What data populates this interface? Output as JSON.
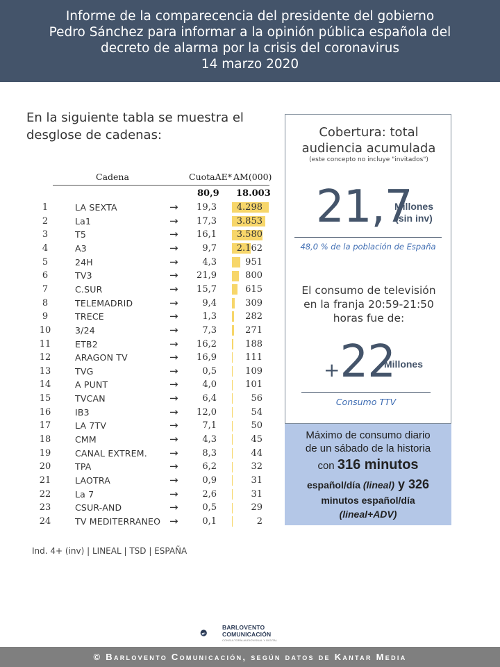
{
  "header": {
    "lines": [
      "Informe de la comparecencia del presidente del gobierno",
      "Pedro Sánchez para informar a la opinión pública española del",
      "decreto de alarma por la crisis del coronavirus",
      "14 marzo 2020"
    ]
  },
  "intro": {
    "line1": "En la siguiente tabla se muestra el",
    "line2": "desglose de cadenas:"
  },
  "table": {
    "col_cadena": "Cadena",
    "col_cuota": "CuotaAE*",
    "col_am": "AM(000)",
    "total_cuota": "80,9",
    "total_am": "18.003",
    "rows": [
      {
        "rank": "1",
        "name": "LA SEXTA",
        "arrow": "→",
        "cuota": "19,3",
        "am": "4.298",
        "am_value": 4298
      },
      {
        "rank": "2",
        "name": "La1",
        "arrow": "→",
        "cuota": "17,3",
        "am": "3.853",
        "am_value": 3853
      },
      {
        "rank": "3",
        "name": "T5",
        "arrow": "→",
        "cuota": "16,1",
        "am": "3.580",
        "am_value": 3580
      },
      {
        "rank": "4",
        "name": "A3",
        "arrow": "→",
        "cuota": "9,7",
        "am": "2.162",
        "am_value": 2162
      },
      {
        "rank": "5",
        "name": "24H",
        "arrow": "→",
        "cuota": "4,3",
        "am": "951",
        "am_value": 951
      },
      {
        "rank": "6",
        "name": "TV3",
        "arrow": "→",
        "cuota": "21,9",
        "am": "800",
        "am_value": 800
      },
      {
        "rank": "7",
        "name": "C.SUR",
        "arrow": "→",
        "cuota": "15,7",
        "am": "615",
        "am_value": 615
      },
      {
        "rank": "8",
        "name": "TELEMADRID",
        "arrow": "→",
        "cuota": "9,4",
        "am": "309",
        "am_value": 309
      },
      {
        "rank": "9",
        "name": "TRECE",
        "arrow": "→",
        "cuota": "1,3",
        "am": "282",
        "am_value": 282
      },
      {
        "rank": "10",
        "name": "3/24",
        "arrow": "→",
        "cuota": "7,3",
        "am": "271",
        "am_value": 271
      },
      {
        "rank": "11",
        "name": "ETB2",
        "arrow": "→",
        "cuota": "16,2",
        "am": "188",
        "am_value": 188
      },
      {
        "rank": "12",
        "name": "ARAGON TV",
        "arrow": "→",
        "cuota": "16,9",
        "am": "111",
        "am_value": 111
      },
      {
        "rank": "13",
        "name": "TVG",
        "arrow": "→",
        "cuota": "0,5",
        "am": "109",
        "am_value": 109
      },
      {
        "rank": "14",
        "name": "A PUNT",
        "arrow": "→",
        "cuota": "4,0",
        "am": "101",
        "am_value": 101
      },
      {
        "rank": "15",
        "name": "TVCAN",
        "arrow": "→",
        "cuota": "6,4",
        "am": "56",
        "am_value": 56
      },
      {
        "rank": "16",
        "name": "IB3",
        "arrow": "→",
        "cuota": "12,0",
        "am": "54",
        "am_value": 54
      },
      {
        "rank": "17",
        "name": "LA 7TV",
        "arrow": "→",
        "cuota": "7,1",
        "am": "50",
        "am_value": 50
      },
      {
        "rank": "18",
        "name": "CMM",
        "arrow": "→",
        "cuota": "4,3",
        "am": "45",
        "am_value": 45
      },
      {
        "rank": "19",
        "name": "CANAL EXTREM.",
        "arrow": "→",
        "cuota": "8,3",
        "am": "44",
        "am_value": 44
      },
      {
        "rank": "20",
        "name": "TPA",
        "arrow": "→",
        "cuota": "6,2",
        "am": "32",
        "am_value": 32
      },
      {
        "rank": "21",
        "name": "LAOTRA",
        "arrow": "→",
        "cuota": "0,9",
        "am": "31",
        "am_value": 31
      },
      {
        "rank": "22",
        "name": "La 7",
        "arrow": "→",
        "cuota": "2,6",
        "am": "31",
        "am_value": 31
      },
      {
        "rank": "23",
        "name": "CSUR-AND",
        "arrow": "→",
        "cuota": "0,5",
        "am": "29",
        "am_value": 29
      },
      {
        "rank": "24",
        "name": "TV MEDITERRANEO",
        "arrow": "→",
        "cuota": "0,1",
        "am": "2",
        "am_value": 2
      }
    ],
    "bar_color": "#f7d66a"
  },
  "footnote": "Ind. 4+ (inv) | LINEAL | TSD | ESPAÑA",
  "panel": {
    "title_line1": "Cobertura: total",
    "title_line2": "audiencia acumulada",
    "subnote": "(este concepto no incluye \"invitados\")",
    "big_number": "21,7",
    "big_unit_line1": "Millones",
    "big_unit_line2": "(sin inv)",
    "population_note": "48,0 % de la población de España",
    "consumo_line1": "El consumo de televisión",
    "consumo_line2": "en la franja 20:59-21:50",
    "consumo_line3": "horas fue de:",
    "plus": "+",
    "plus_number": "22",
    "plus_unit": "Millones",
    "ttv_note": "Consumo TTV",
    "accent_color": "#44546a"
  },
  "blue_box": {
    "line1": "Máximo de consumo diario",
    "line2": "de un sábado de la historia",
    "line3_pre": "con ",
    "line3_bold": "316 minutos",
    "line4_a": "español/día ",
    "line4_b": "(lineal)",
    "line4_c": " y 326",
    "line5": "minutos español/día",
    "line6": "(lineal+ADV)",
    "color": "#b4c7e7"
  },
  "logo": {
    "line1": "BARLOVENTO",
    "line2": "COMUNICACIÓN",
    "line3": "CONSULTORÍA AUDIOVISUAL Y DIGITAL"
  },
  "footer": "© Barlovento Comunicación, según datos de Kantar Media"
}
